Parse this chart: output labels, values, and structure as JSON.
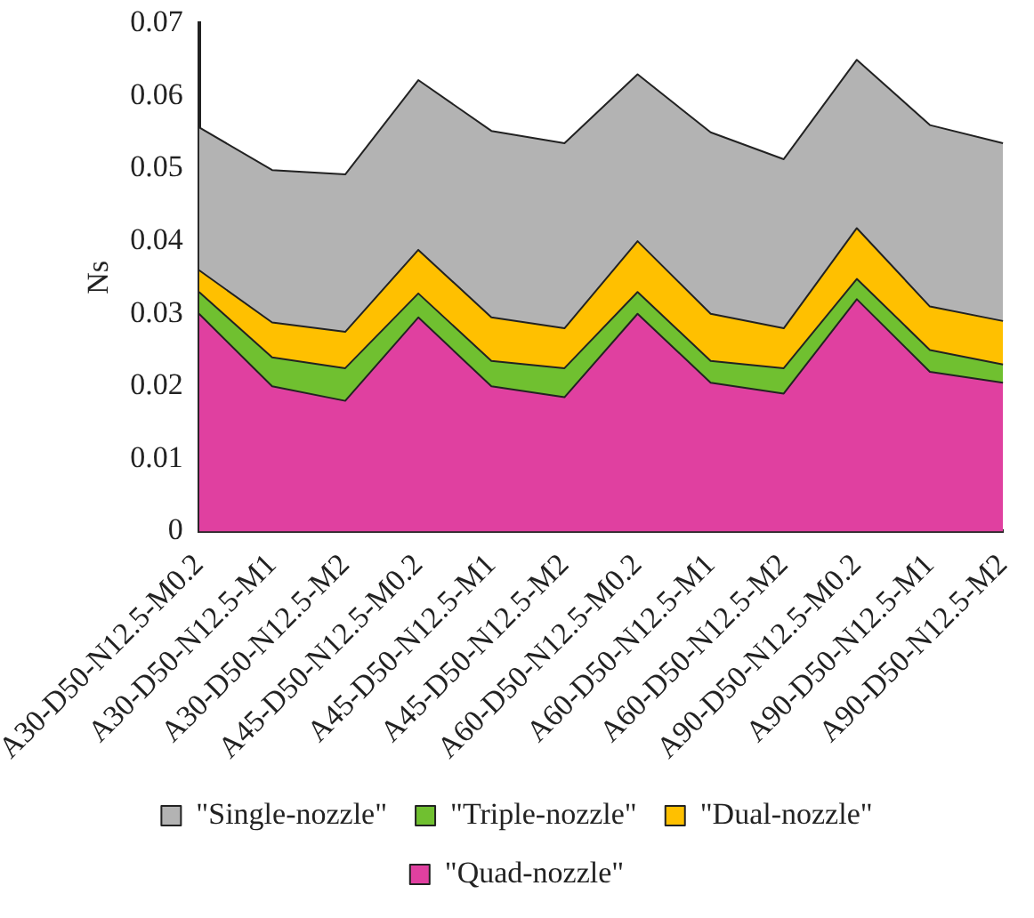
{
  "chart_data": {
    "type": "area",
    "ylabel": "Ns",
    "stacked": true,
    "categories": [
      "A30-D50-N12.5-M0.2",
      "A30-D50-N12.5-M1",
      "A30-D50-N12.5-M2",
      "A45-D50-N12.5-M0.2",
      "A45-D50-N12.5-M1",
      "A45-D50-N12.5-M2",
      "A60-D50-N12.5-M0.2",
      "A60-D50-N12.5-M1",
      "A60-D50-N12.5-M2",
      "A90-D50-N12.5-M0.2",
      "A90-D50-N12.5-M1",
      "A90-D50-N12.5-M2"
    ],
    "series": [
      {
        "name": "\"Quad-nozzle\"",
        "color": "#e040a0",
        "values": [
          0.03,
          0.02,
          0.018,
          0.0295,
          0.02,
          0.0185,
          0.03,
          0.0205,
          0.019,
          0.032,
          0.022,
          0.0205
        ]
      },
      {
        "name": "\"Triple-nozzle\"",
        "color": "#70c030",
        "values": [
          0.003,
          0.004,
          0.0045,
          0.0033,
          0.0035,
          0.004,
          0.003,
          0.003,
          0.0035,
          0.0028,
          0.003,
          0.0025
        ]
      },
      {
        "name": "\"Dual-nozzle\"",
        "color": "#ffc000",
        "values": [
          0.003,
          0.0048,
          0.005,
          0.006,
          0.006,
          0.0055,
          0.007,
          0.0065,
          0.0055,
          0.007,
          0.006,
          0.006
        ]
      },
      {
        "name": "\"Single-nozzle\"",
        "color": "#b3b3b3",
        "values": [
          0.0197,
          0.021,
          0.0217,
          0.0234,
          0.0257,
          0.0255,
          0.023,
          0.025,
          0.0233,
          0.0232,
          0.025,
          0.0245
        ]
      }
    ],
    "ylim": [
      0,
      0.07
    ],
    "yticks": [
      0,
      0.01,
      0.02,
      0.03,
      0.04,
      0.05,
      0.06,
      0.07
    ],
    "grid": false,
    "legend": "bottom"
  }
}
